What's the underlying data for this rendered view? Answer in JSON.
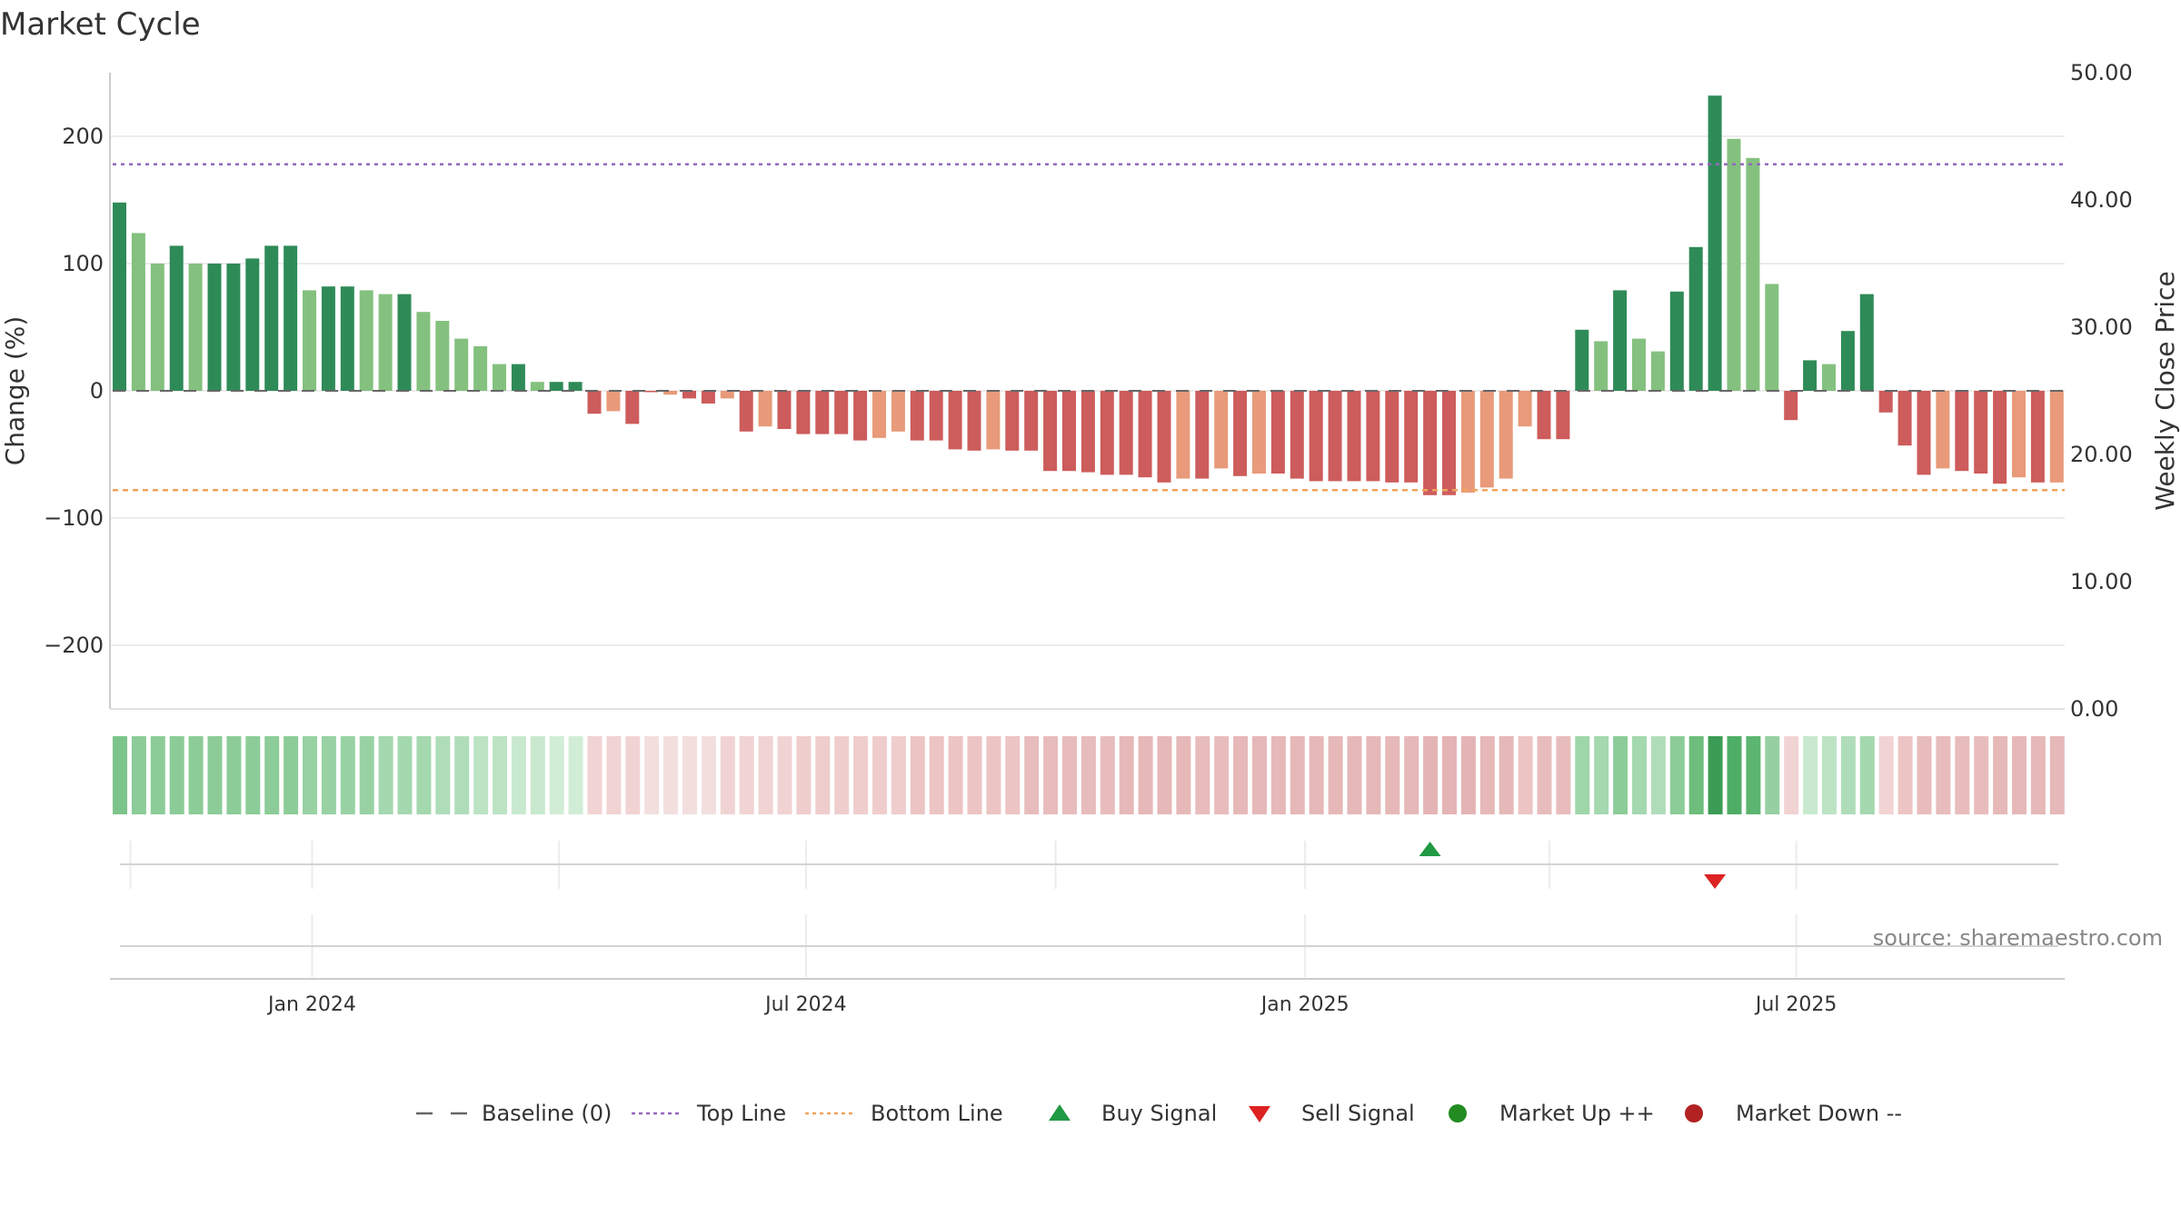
{
  "chart_data": {
    "type": "bar",
    "title": "Market Cycle",
    "ylabel": "Change (%)",
    "y2label": "Weekly Close Price",
    "ylim": [
      -250,
      250
    ],
    "y2lim": [
      0,
      50
    ],
    "yticks": [
      200,
      100,
      0,
      -100,
      -200
    ],
    "ytick_labels": [
      "200",
      "100",
      "0",
      "−100",
      "−200"
    ],
    "y2ticks": [
      50,
      40,
      30,
      20,
      10,
      0
    ],
    "y2tick_labels": [
      "50.00",
      "40.00",
      "30.00",
      "20.00",
      "10.00",
      "0.00"
    ],
    "top_line": 178,
    "bottom_line": -78,
    "start_date": "2023-10-23",
    "week_count": 103,
    "x_ticks": [
      {
        "date": "2024-01-01",
        "label": "Jan 2024"
      },
      {
        "date": "2024-07-01",
        "label": "Jul 2024"
      },
      {
        "date": "2025-01-01",
        "label": "Jan 2025"
      },
      {
        "date": "2025-07-01",
        "label": "Jul 2025"
      }
    ],
    "signal_gridlines": [
      "2023-10-26",
      "2024-01-01",
      "2024-04-01",
      "2024-07-01",
      "2024-10-01",
      "2025-01-01",
      "2025-04-01",
      "2025-07-01"
    ],
    "values": [
      148,
      124,
      100,
      114,
      100,
      100,
      100,
      104,
      114,
      114,
      79,
      82,
      82,
      79,
      76,
      76,
      62,
      55,
      41,
      35,
      21,
      21,
      7,
      7,
      7,
      -18,
      -16,
      -26,
      -1,
      -3,
      -6,
      -10,
      -6,
      -32,
      -28,
      -30,
      -34,
      -34,
      -34,
      -39,
      -37,
      -32,
      -39,
      -39,
      -46,
      -47,
      -46,
      -47,
      -47,
      -63,
      -63,
      -64,
      -66,
      -66,
      -68,
      -72,
      -69,
      -69,
      -61,
      -67,
      -65,
      -65,
      -69,
      -71,
      -71,
      -71,
      -71,
      -72,
      -72,
      -82,
      -82,
      -80,
      -76,
      -69,
      -28,
      -38,
      -38,
      48,
      39,
      79,
      41,
      31,
      78,
      113,
      232,
      198,
      183,
      84,
      -23,
      24,
      21,
      47,
      76,
      -17,
      -43,
      -66,
      -61,
      -63,
      -65,
      -73,
      -68,
      -72,
      -72
    ],
    "bar_colors": [
      "#2e8b57",
      "#84c17f",
      "#84c17f",
      "#2e8b57",
      "#84c17f",
      "#2e8b57",
      "#2e8b57",
      "#2e8b57",
      "#2e8b57",
      "#2e8b57",
      "#84c17f",
      "#2e8b57",
      "#2e8b57",
      "#84c17f",
      "#84c17f",
      "#2e8b57",
      "#84c17f",
      "#84c17f",
      "#84c17f",
      "#84c17f",
      "#84c17f",
      "#2e8b57",
      "#84c17f",
      "#2e8b57",
      "#2e8b57",
      "#cd5c5c",
      "#e89a7a",
      "#cd5c5c",
      "#cd5c5c",
      "#e89a7a",
      "#cd5c5c",
      "#cd5c5c",
      "#e89a7a",
      "#cd5c5c",
      "#e89a7a",
      "#cd5c5c",
      "#cd5c5c",
      "#cd5c5c",
      "#cd5c5c",
      "#cd5c5c",
      "#e89a7a",
      "#e89a7a",
      "#cd5c5c",
      "#cd5c5c",
      "#cd5c5c",
      "#cd5c5c",
      "#e89a7a",
      "#cd5c5c",
      "#cd5c5c",
      "#cd5c5c",
      "#cd5c5c",
      "#cd5c5c",
      "#cd5c5c",
      "#cd5c5c",
      "#cd5c5c",
      "#cd5c5c",
      "#e89a7a",
      "#cd5c5c",
      "#e89a7a",
      "#cd5c5c",
      "#e89a7a",
      "#cd5c5c",
      "#cd5c5c",
      "#cd5c5c",
      "#cd5c5c",
      "#cd5c5c",
      "#cd5c5c",
      "#cd5c5c",
      "#cd5c5c",
      "#cd5c5c",
      "#cd5c5c",
      "#e89a7a",
      "#e89a7a",
      "#e89a7a",
      "#e89a7a",
      "#cd5c5c",
      "#cd5c5c",
      "#2e8b57",
      "#84c17f",
      "#2e8b57",
      "#84c17f",
      "#84c17f",
      "#2e8b57",
      "#2e8b57",
      "#2e8b57",
      "#84c17f",
      "#84c17f",
      "#84c17f",
      "#cd5c5c",
      "#2e8b57",
      "#84c17f",
      "#2e8b57",
      "#2e8b57",
      "#cd5c5c",
      "#cd5c5c",
      "#cd5c5c",
      "#e89a7a",
      "#cd5c5c",
      "#cd5c5c",
      "#cd5c5c",
      "#e89a7a",
      "#cd5c5c",
      "#e89a7a"
    ],
    "heat_colors": [
      "#7cc48a",
      "#8ccc98",
      "#8ccc98",
      "#8ccc98",
      "#8ccc98",
      "#8ccc98",
      "#8ccc98",
      "#8ccc98",
      "#8ccc98",
      "#8ccc98",
      "#98d2a3",
      "#98d2a3",
      "#98d2a3",
      "#98d2a3",
      "#a4d8ae",
      "#a4d8ae",
      "#a4d8ae",
      "#b0ddb9",
      "#b0ddb9",
      "#bce3c4",
      "#bce3c4",
      "#c8e9ce",
      "#c8e9ce",
      "#d1edd6",
      "#d1edd6",
      "#f1d3d3",
      "#f1d3d3",
      "#f1d3d3",
      "#f3dede",
      "#f3dede",
      "#f3dede",
      "#f3dede",
      "#f1d3d3",
      "#f1d3d3",
      "#f1d3d3",
      "#f1d3d3",
      "#efcdcd",
      "#efcdcd",
      "#efcdcd",
      "#efcdcd",
      "#efcdcd",
      "#efcdcd",
      "#ecc4c4",
      "#ecc4c4",
      "#ecc4c4",
      "#ecc4c4",
      "#ecc4c4",
      "#ecc4c4",
      "#e8bcbc",
      "#e8bcbc",
      "#e8bcbc",
      "#e8bcbc",
      "#e8bcbc",
      "#e6b8b8",
      "#e6b8b8",
      "#e6b8b8",
      "#e6b8b8",
      "#e8bcbc",
      "#e8bcbc",
      "#e6b8b8",
      "#e6b8b8",
      "#e6b8b8",
      "#e6b8b8",
      "#e6b8b8",
      "#e6b8b8",
      "#e6b8b8",
      "#e6b8b8",
      "#e6b8b8",
      "#e6b8b8",
      "#e4b4b4",
      "#e4b4b4",
      "#e4b4b4",
      "#e6b8b8",
      "#e6b8b8",
      "#ecc4c4",
      "#e8bcbc",
      "#e8bcbc",
      "#9fd6a9",
      "#a4d8ae",
      "#8ccc98",
      "#a4d8ae",
      "#b0ddb9",
      "#8ccc98",
      "#6dbd7c",
      "#3c9c56",
      "#4fae66",
      "#5cb570",
      "#96d0a1",
      "#f1d3d3",
      "#c8e9ce",
      "#bce3c4",
      "#b0ddb9",
      "#a4d8ae",
      "#f1d3d3",
      "#ecc4c4",
      "#e8bcbc",
      "#e8bcbc",
      "#e8bcbc",
      "#e8bcbc",
      "#e6b8b8",
      "#e6b8b8",
      "#e6b8b8",
      "#e6b8b8"
    ],
    "buy_signals": [
      {
        "index": 69
      }
    ],
    "sell_signals": [
      {
        "index": 84
      }
    ],
    "legend": [
      {
        "name": "Baseline (0)",
        "symbol": "dash",
        "color": "#666666"
      },
      {
        "name": "Top Line",
        "symbol": "dotted",
        "color": "#9467bd"
      },
      {
        "name": "Bottom Line",
        "symbol": "dotted",
        "color": "#f0a35e"
      },
      {
        "name": "Buy Signal",
        "symbol": "triangle-up",
        "color": "#229944"
      },
      {
        "name": "Sell Signal",
        "symbol": "triangle-down",
        "color": "#dd2222"
      },
      {
        "name": "Market Up ++",
        "symbol": "circle",
        "color": "#228b22"
      },
      {
        "name": "Market Down --",
        "symbol": "circle",
        "color": "#b22222"
      }
    ],
    "legend_position": "bottom-center",
    "source": "source: sharemaestro.com",
    "grid": true
  }
}
